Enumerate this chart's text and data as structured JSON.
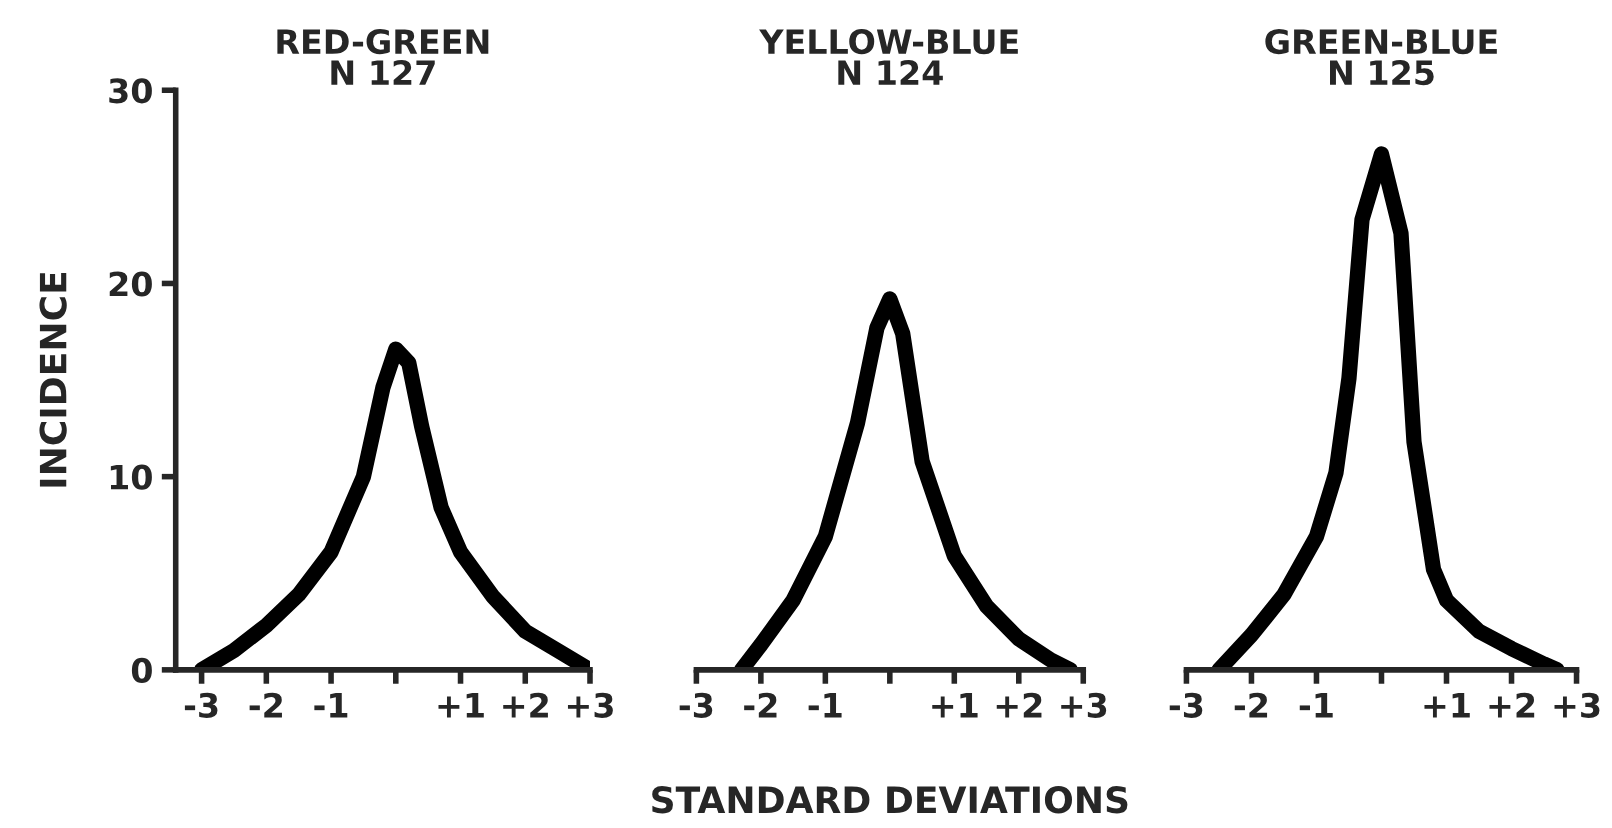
{
  "chart_data": [
    {
      "type": "line",
      "title": "RED-GREEN",
      "subtitle": "N 127",
      "ylabel": "INCIDENCE",
      "x": [
        -3,
        -2.5,
        -2,
        -1.5,
        -1,
        -0.5,
        -0.2,
        0,
        0.2,
        0.4,
        0.7,
        1,
        1.5,
        2,
        2.5,
        3
      ],
      "series": [
        {
          "color": "#000000",
          "values": [
            0,
            1.0,
            2.3,
            3.9,
            6.1,
            10,
            14.6,
            16.6,
            15.9,
            12.6,
            8.4,
            6.1,
            3.8,
            2.0,
            1.0,
            0
          ]
        }
      ],
      "xlim": [
        -3.4,
        3
      ],
      "ylim": [
        0,
        30
      ],
      "xticks": [
        {
          "value": -3,
          "label": "-3"
        },
        {
          "value": -2,
          "label": "-2"
        },
        {
          "value": -1,
          "label": "-1"
        },
        {
          "value": 0,
          "label": null
        },
        {
          "value": 1,
          "label": "+1"
        },
        {
          "value": 2,
          "label": "+2"
        },
        {
          "value": 3,
          "label": "+3"
        }
      ],
      "yticks": [
        0,
        10,
        20,
        30
      ],
      "grid": false,
      "marker": "none",
      "line_style": "solid"
    },
    {
      "type": "line",
      "title": "YELLOW-BLUE",
      "subtitle": "N 124",
      "xlabel": "STANDARD DEVIATIONS",
      "x": [
        -2.3,
        -2,
        -1.5,
        -1,
        -0.5,
        -0.2,
        0,
        0.2,
        0.5,
        1,
        1.5,
        2,
        2.5,
        2.8
      ],
      "series": [
        {
          "color": "#000000",
          "values": [
            0,
            1.3,
            3.6,
            6.9,
            12.8,
            17.7,
            19.2,
            17.4,
            10.8,
            5.9,
            3.3,
            1.6,
            0.5,
            0
          ]
        }
      ],
      "xlim": [
        -3,
        3
      ],
      "ylim": [
        0,
        30
      ],
      "xticks": [
        {
          "value": -3,
          "label": "-3"
        },
        {
          "value": -2,
          "label": "-2"
        },
        {
          "value": -1,
          "label": "-1"
        },
        {
          "value": 0,
          "label": null
        },
        {
          "value": 1,
          "label": "+1"
        },
        {
          "value": 2,
          "label": "+2"
        },
        {
          "value": 3,
          "label": "+3"
        }
      ],
      "tick_labels": "x",
      "grid": false,
      "marker": "none",
      "line_style": "solid"
    },
    {
      "type": "line",
      "title": "GREEN-BLUE",
      "subtitle": "N 125",
      "x": [
        -2.5,
        -2,
        -1.5,
        -1,
        -0.7,
        -0.5,
        -0.3,
        0,
        0.3,
        0.5,
        0.8,
        1,
        1.5,
        2,
        2.5,
        2.7
      ],
      "series": [
        {
          "color": "#000000",
          "values": [
            0,
            1.8,
            3.9,
            6.9,
            10.2,
            15.1,
            23.3,
            26.7,
            22.6,
            11.8,
            5.2,
            3.6,
            2.0,
            1.1,
            0.3,
            0
          ]
        }
      ],
      "xlim": [
        -3,
        3
      ],
      "ylim": [
        0,
        30
      ],
      "xticks": [
        {
          "value": -3,
          "label": "-3"
        },
        {
          "value": -2,
          "label": "-2"
        },
        {
          "value": -1,
          "label": "-1"
        },
        {
          "value": 0,
          "label": null
        },
        {
          "value": 1,
          "label": "+1"
        },
        {
          "value": 2,
          "label": "+2"
        },
        {
          "value": 3,
          "label": "+3"
        }
      ],
      "tick_labels": "x",
      "grid": false,
      "marker": "none",
      "line_style": "solid"
    }
  ]
}
